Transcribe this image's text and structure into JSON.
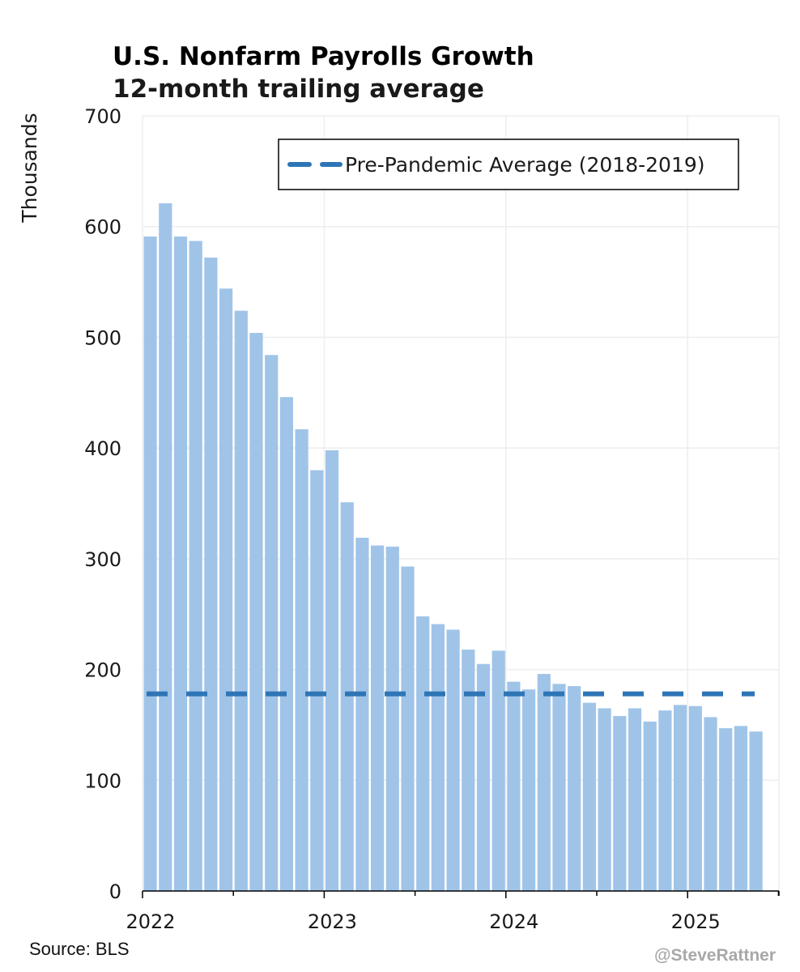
{
  "header": {
    "title": "U.S. Nonfarm Payrolls Growth",
    "subtitle": "12-month trailing average"
  },
  "footer": {
    "source": "Source: BLS",
    "handle": "@SteveRattner"
  },
  "colors": {
    "bar": "#a0c4e8",
    "reference_line": "#2e75b6",
    "grid": "#eeeeee"
  },
  "chart_data": {
    "type": "bar",
    "title": "U.S. Nonfarm Payrolls Growth",
    "subtitle": "12-month trailing average",
    "ylabel": "Thousands",
    "xlabel": "",
    "ylim": [
      0,
      700
    ],
    "yticks": [
      "0",
      "100",
      "200",
      "300",
      "400",
      "500",
      "600",
      "700"
    ],
    "xticks": [
      "2022",
      "2023",
      "2024",
      "2025"
    ],
    "grid": true,
    "legend_position": "top-right",
    "categories": [
      "2022-01",
      "2022-02",
      "2022-03",
      "2022-04",
      "2022-05",
      "2022-06",
      "2022-07",
      "2022-08",
      "2022-09",
      "2022-10",
      "2022-11",
      "2022-12",
      "2023-01",
      "2023-02",
      "2023-03",
      "2023-04",
      "2023-05",
      "2023-06",
      "2023-07",
      "2023-08",
      "2023-09",
      "2023-10",
      "2023-11",
      "2023-12",
      "2024-01",
      "2024-02",
      "2024-03",
      "2024-04",
      "2024-05",
      "2024-06",
      "2024-07",
      "2024-08",
      "2024-09",
      "2024-10",
      "2024-11",
      "2024-12",
      "2025-01",
      "2025-02",
      "2025-03",
      "2025-04",
      "2025-05"
    ],
    "series": [
      {
        "values": [
          591,
          621,
          591,
          587,
          572,
          544,
          524,
          504,
          484,
          446,
          417,
          380,
          398,
          351,
          319,
          312,
          311,
          293,
          248,
          241,
          236,
          218,
          205,
          217,
          189,
          182,
          196,
          187,
          185,
          170,
          165,
          158,
          165,
          153,
          163,
          168,
          167,
          157,
          147,
          149,
          144
        ]
      }
    ],
    "reference_line": {
      "name": "Pre-Pandemic Average (2018-2019)",
      "value": 178,
      "style": "dashed"
    }
  }
}
